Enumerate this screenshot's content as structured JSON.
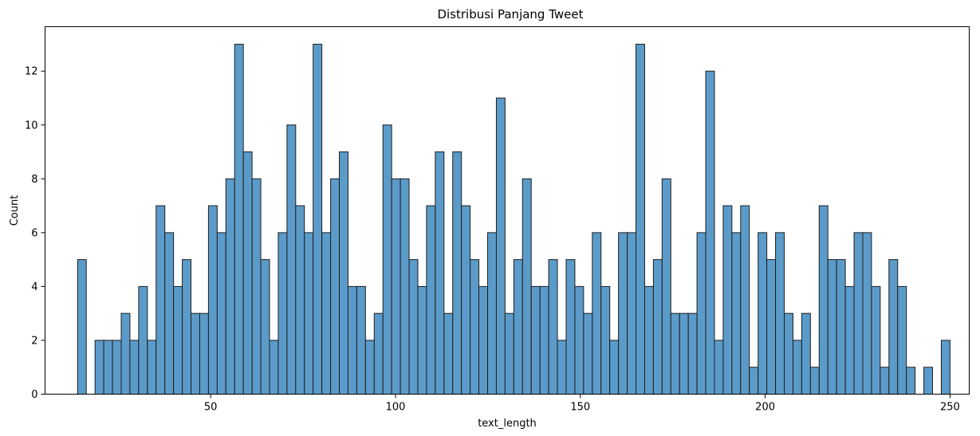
{
  "chart_data": {
    "type": "bar",
    "title": "Distribusi Panjang Tweet",
    "xlabel": "text_length",
    "ylabel": "Count",
    "xlim": [
      5.2,
      255.2
    ],
    "ylim": [
      0,
      13.65
    ],
    "bin_start": 14,
    "bin_width": 2.36,
    "x_ticks": [
      50,
      100,
      150,
      200,
      250
    ],
    "y_ticks": [
      0,
      2,
      4,
      6,
      8,
      10,
      12
    ],
    "values": [
      5,
      0,
      2,
      2,
      2,
      3,
      2,
      4,
      2,
      7,
      6,
      4,
      5,
      3,
      3,
      7,
      6,
      8,
      13,
      9,
      8,
      5,
      2,
      6,
      10,
      7,
      6,
      13,
      6,
      8,
      9,
      4,
      4,
      2,
      3,
      10,
      8,
      8,
      5,
      4,
      7,
      9,
      3,
      9,
      7,
      5,
      4,
      6,
      11,
      3,
      5,
      8,
      4,
      4,
      5,
      2,
      5,
      4,
      3,
      6,
      4,
      2,
      6,
      6,
      13,
      4,
      5,
      8,
      3,
      3,
      3,
      6,
      12,
      2,
      7,
      6,
      7,
      1,
      6,
      5,
      6,
      3,
      2,
      3,
      1,
      7,
      5,
      5,
      4,
      6,
      6,
      4,
      1,
      5,
      4,
      1,
      0,
      1,
      0,
      2
    ],
    "grid": false,
    "colors": {
      "bar_fill": "#5b9bc9",
      "bar_edge": "#1f1f1f",
      "axis": "#000000"
    }
  }
}
